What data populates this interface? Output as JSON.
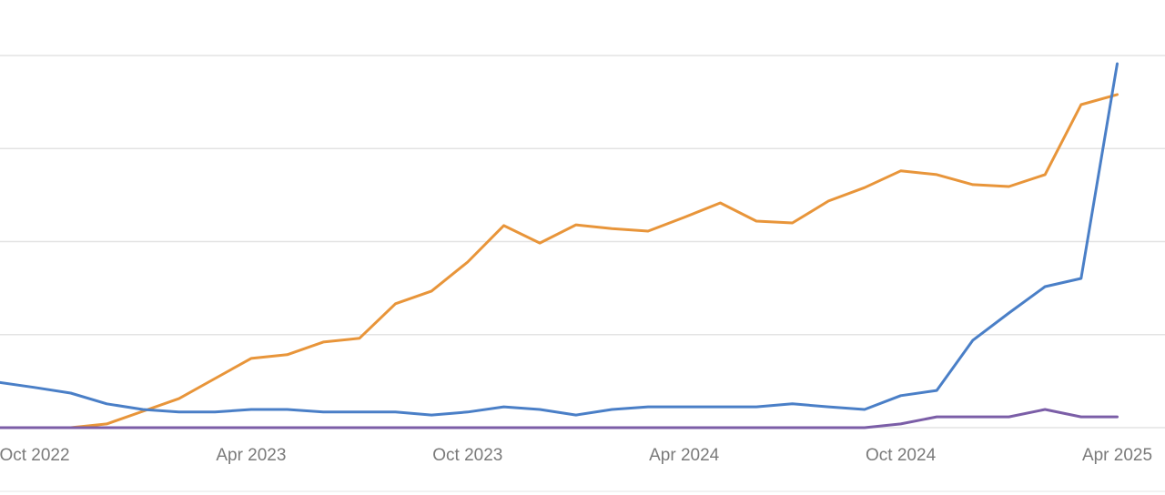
{
  "chart_data": {
    "type": "line",
    "categories": [
      null,
      "Oct 2022",
      null,
      null,
      null,
      null,
      null,
      "Apr 2023",
      null,
      null,
      null,
      null,
      null,
      "Oct 2023",
      null,
      null,
      null,
      null,
      null,
      "Apr 2024",
      null,
      null,
      null,
      null,
      null,
      "Oct 2024",
      null,
      null,
      null,
      null,
      null,
      "Apr 2025"
    ],
    "series": [
      {
        "color": "#e8953a",
        "values": [
          0,
          0,
          0,
          1,
          4.4,
          7.8,
          13.2,
          18.6,
          19.6,
          23,
          24,
          33.3,
          36.7,
          44.5,
          54.3,
          49.6,
          54.5,
          53.5,
          52.8,
          56.5,
          60.4,
          55.5,
          55,
          60.9,
          64.5,
          69,
          68,
          65.3,
          64.8,
          68,
          86.8,
          89.5
        ]
      },
      {
        "color": "#4a7fc7",
        "values": [
          12.2,
          10.8,
          9.3,
          6.4,
          4.9,
          4.2,
          4.2,
          4.9,
          4.9,
          4.2,
          4.2,
          4.2,
          3.4,
          4.2,
          5.6,
          4.9,
          3.4,
          4.9,
          5.6,
          5.6,
          5.6,
          5.6,
          6.4,
          5.6,
          4.9,
          8.6,
          10,
          23.5,
          30.8,
          37.9,
          40.1,
          97.8
        ]
      },
      {
        "color": "#7b5ea7",
        "values": [
          0,
          0,
          0,
          0,
          0,
          0,
          0,
          0,
          0,
          0,
          0,
          0,
          0,
          0,
          0,
          0,
          0,
          0,
          0,
          0,
          0,
          0,
          0,
          0,
          0,
          1,
          2.9,
          2.9,
          2.9,
          4.9,
          2.9,
          2.9
        ]
      }
    ],
    "ylim": [
      0,
      100
    ],
    "yticks": [
      0,
      25,
      50,
      75,
      100
    ],
    "grid": true
  }
}
